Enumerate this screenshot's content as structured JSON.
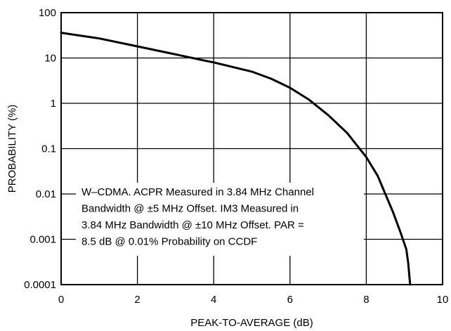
{
  "chart_data": {
    "type": "line",
    "title": "",
    "xlabel": "PEAK-TO-AVERAGE (dB)",
    "ylabel": "PROBABILITY (%)",
    "xlim": [
      0,
      10
    ],
    "ylim": [
      0.0001,
      100
    ],
    "y_scale": "log",
    "grid": true,
    "x_ticks": [
      0,
      2,
      4,
      6,
      8,
      10
    ],
    "x_tick_labels": [
      "0",
      "2",
      "4",
      "6",
      "8",
      "10"
    ],
    "y_ticks": [
      100,
      10,
      1,
      0.1,
      0.01,
      0.001,
      0.0001
    ],
    "y_tick_labels": [
      "100",
      "10",
      "1",
      "0.1",
      "0.01",
      "0.001",
      "0.0001"
    ],
    "series": [
      {
        "x": [
          0,
          1,
          2,
          3,
          3.7,
          4,
          5,
          5.5,
          6,
          6.5,
          7,
          7.5,
          8,
          8.3,
          8.5,
          8.7,
          8.9,
          9.05,
          9.1,
          9.15
        ],
        "y": [
          36,
          27,
          18,
          12,
          9,
          8,
          5,
          3.5,
          2.2,
          1.2,
          0.55,
          0.22,
          0.065,
          0.025,
          0.01,
          0.004,
          0.0014,
          0.0006,
          0.0003,
          0.0001
        ]
      }
    ],
    "annotation": [
      "W–CDMA. ACPR Measured in 3.84 MHz Channel",
      "Bandwidth @ ±5 MHz Offset. IM3 Measured in",
      "3.84 MHz Bandwidth @ ±10 MHz Offset. PAR =",
      "8.5 dB @ 0.01% Probability on CCDF"
    ]
  }
}
